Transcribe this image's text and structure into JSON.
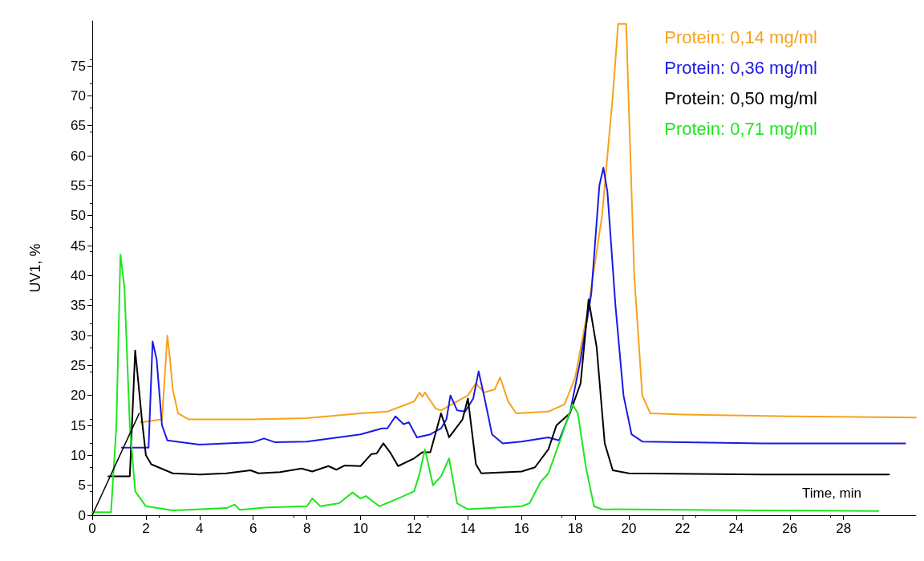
{
  "chart_data": {
    "type": "line",
    "xlabel": "Time, min",
    "ylabel": "UV1, %",
    "xlim": [
      0,
      30.7
    ],
    "ylim": [
      0,
      82.5
    ],
    "xticks": [
      0,
      2,
      4,
      6,
      8,
      10,
      12,
      14,
      16,
      18,
      20,
      22,
      24,
      26,
      28
    ],
    "yticks": [
      0,
      5,
      10,
      15,
      20,
      25,
      30,
      35,
      40,
      45,
      50,
      55,
      60,
      65,
      70,
      75
    ],
    "legend": "top right",
    "grid": false,
    "marker": "none",
    "line_style": "solid",
    "series": [
      {
        "name": "Protein: 0,14 mg/ml",
        "color": "#f7a21c",
        "x": [
          1.8,
          2.6,
          2.8,
          2.9,
          3.0,
          3.2,
          3.6,
          6,
          8,
          10,
          11,
          12,
          12.2,
          12.3,
          12.4,
          12.8,
          13,
          14,
          14.3,
          14.6,
          15,
          15.2,
          15.5,
          15.8,
          17,
          17.6,
          18,
          18.5,
          19,
          19.4,
          19.6,
          19.9,
          20.2,
          20.5,
          20.8,
          22,
          26,
          30.7
        ],
        "values": [
          15.5,
          16,
          30,
          26,
          21,
          17,
          16,
          16,
          16.2,
          17,
          17.3,
          19,
          20.5,
          19.8,
          20.5,
          17.8,
          17.5,
          20,
          22,
          20.5,
          21,
          23,
          19,
          17,
          17.3,
          18.5,
          23,
          35,
          50,
          70,
          82,
          82,
          40,
          20,
          17,
          16.8,
          16.5,
          16.3
        ]
      },
      {
        "name": "Protein: 0,36 mg/ml",
        "color": "#1a1ae6",
        "x": [
          1.1,
          2.1,
          2.25,
          2.4,
          2.6,
          2.8,
          4,
          6,
          6.4,
          6.8,
          8,
          10,
          10.8,
          11,
          11.3,
          11.6,
          11.8,
          12.1,
          12.6,
          13,
          13.2,
          13.35,
          13.6,
          13.9,
          14.2,
          14.4,
          14.6,
          14.9,
          15.3,
          16,
          17,
          17.4,
          17.8,
          18.2,
          18.6,
          18.9,
          19.05,
          19.2,
          19.5,
          19.8,
          20.1,
          20.5,
          25,
          30.3
        ],
        "values": [
          11.3,
          11.3,
          29,
          26,
          15,
          12.5,
          11.8,
          12.2,
          12.8,
          12.2,
          12.3,
          13.5,
          14.5,
          14.5,
          16.5,
          15.2,
          15.5,
          13,
          13.5,
          14.5,
          16,
          20,
          17.5,
          17.3,
          19.5,
          24,
          20,
          13.5,
          12,
          12.3,
          13,
          12.5,
          17,
          26,
          37,
          55,
          58,
          54,
          35,
          20,
          13.5,
          12.3,
          12,
          12
        ]
      },
      {
        "name": "Protein: 0,50 mg/ml",
        "color": "#000000",
        "x": [
          0.6,
          1.4,
          1.6,
          1.7,
          1.85,
          2.0,
          2.2,
          3,
          4,
          5,
          5.9,
          6.2,
          7,
          7.8,
          8.2,
          8.8,
          9.1,
          9.4,
          10,
          10.4,
          10.6,
          10.85,
          11.1,
          11.4,
          12,
          12.3,
          12.6,
          13,
          13.3,
          13.8,
          14,
          14.3,
          14.5,
          16,
          16.5,
          17,
          17.3,
          17.8,
          18.2,
          18.5,
          18.8,
          19.1,
          19.4,
          20,
          25,
          29.7
        ],
        "values": [
          6.5,
          6.5,
          27.5,
          23,
          16,
          10,
          8.5,
          7,
          6.8,
          7,
          7.5,
          7,
          7.2,
          7.8,
          7.3,
          8.2,
          7.6,
          8.3,
          8.2,
          10.2,
          10.3,
          12,
          10.5,
          8.2,
          9.5,
          10.5,
          10.5,
          17,
          13,
          16,
          19.5,
          8.5,
          7,
          7.3,
          8,
          11,
          15,
          17,
          22,
          36,
          28,
          12,
          7.5,
          7,
          6.8,
          6.8
        ]
      },
      {
        "name": "Protein: 0,71 mg/ml",
        "color": "#1ee61e",
        "x": [
          0,
          0.7,
          0.9,
          1.05,
          1.2,
          1.4,
          1.6,
          2,
          3,
          4,
          5,
          5.3,
          5.5,
          6.5,
          8,
          8.2,
          8.5,
          9.2,
          9.7,
          10,
          10.2,
          10.7,
          11.5,
          12,
          12.2,
          12.4,
          12.7,
          13,
          13.3,
          13.6,
          14,
          16,
          16.3,
          16.7,
          17,
          17.4,
          17.9,
          18.1,
          18.4,
          18.7,
          19,
          25,
          29.3
        ],
        "values": [
          0.5,
          0.5,
          15,
          43.5,
          38,
          15,
          4,
          1.5,
          0.8,
          1,
          1.2,
          1.8,
          0.9,
          1.3,
          1.5,
          2.8,
          1.5,
          2,
          3.8,
          2.8,
          3.2,
          1.5,
          3,
          4,
          7,
          11,
          5,
          6.5,
          9.5,
          2,
          1,
          1.5,
          2,
          5.5,
          7,
          12,
          18.5,
          17,
          8,
          1.5,
          1,
          0.8,
          0.7
        ]
      },
      {
        "color": "#000000",
        "x": [
          0,
          1.75
        ],
        "values": [
          0,
          17
        ]
      }
    ]
  }
}
